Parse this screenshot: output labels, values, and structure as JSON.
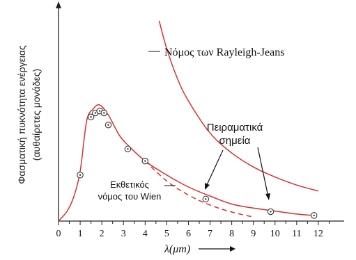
{
  "chart_data": {
    "type": "line",
    "ylabel_line1": "Φασματική πυκνότητα ενέργειας",
    "ylabel_line2": "(αυθαίρετες μονάδες)",
    "xlabel": "λ(μm)",
    "xlim": [
      0,
      13
    ],
    "ylim": [
      0,
      100
    ],
    "x_ticks": [
      "0",
      "1",
      "2",
      "3",
      "4",
      "5",
      "6",
      "7",
      "8",
      "9",
      "10",
      "11",
      "12"
    ],
    "series": [
      {
        "name": "Νόμος των Rayleigh-Jeans",
        "style": "solid",
        "x": [
          4.65,
          5.0,
          5.5,
          6.0,
          7.0,
          8.0,
          9.0,
          10.0,
          11.0,
          12.0
        ],
        "y": [
          100,
          86,
          71,
          60,
          44,
          34,
          27,
          22,
          18,
          15
        ]
      },
      {
        "name": "",
        "style": "solid",
        "x": [
          0,
          0.4,
          0.7,
          1.0,
          1.3,
          1.6,
          1.9,
          2.3,
          2.8,
          3.2,
          4.0,
          5.0,
          6.0,
          7.0,
          8.0,
          9.0,
          10.0,
          11.0,
          11.8
        ],
        "y": [
          0,
          5,
          12,
          25,
          50,
          56,
          58,
          53,
          43,
          38,
          30,
          23,
          17,
          12.5,
          8.5,
          6.5,
          5,
          3.5,
          2.8
        ]
      },
      {
        "name": "Εκθετικός νόμος του Wien",
        "style": "dashed",
        "x": [
          4.0,
          5.0,
          6.0,
          7.0,
          8.0,
          9.0
        ],
        "y": [
          30,
          20,
          13,
          8,
          4.5,
          2
        ]
      },
      {
        "name": "Πειραματικά σημεία",
        "style": "points",
        "x": [
          1.0,
          1.5,
          1.7,
          1.9,
          2.1,
          2.3,
          3.2,
          4.0,
          6.8,
          9.8,
          11.8
        ],
        "y": [
          23,
          52,
          54,
          55,
          54,
          48,
          36,
          30,
          11,
          4.7,
          2.8
        ]
      }
    ],
    "annotations": [
      "Νόμος των Rayleigh-Jeans",
      "Πειραματικά",
      "σημεία",
      "Εκθετικός",
      "νόμος του Wien"
    ],
    "colors": {
      "curve": "#d9302c",
      "axis": "#222222",
      "point_fill": "#ffffff",
      "point_stroke": "#333333"
    }
  }
}
